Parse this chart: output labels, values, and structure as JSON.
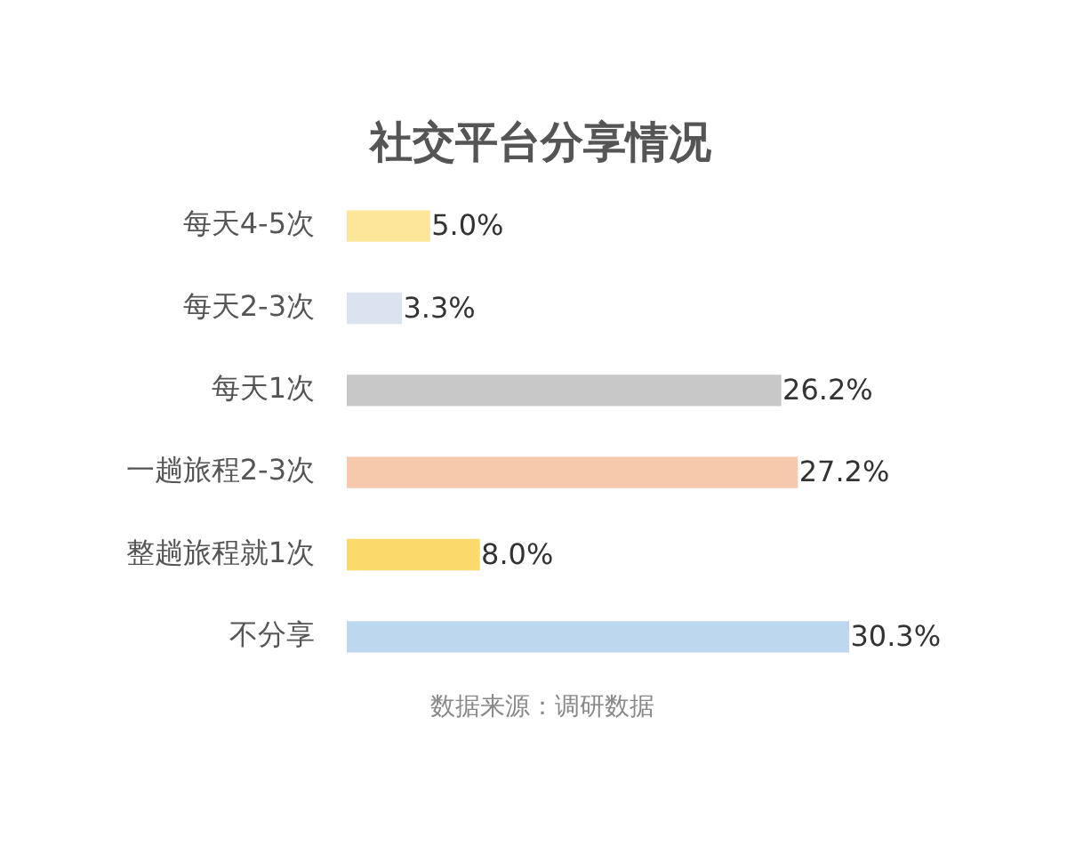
{
  "chart_data": {
    "type": "bar",
    "orientation": "horizontal",
    "title": "社交平台分享情况",
    "categories": [
      "每天4-5次",
      "每天2-3次",
      "每天1次",
      "一趟旅程2-3次",
      "整趟旅程就1次",
      "不分享"
    ],
    "values": [
      5.0,
      3.3,
      26.2,
      27.2,
      8.0,
      30.3
    ],
    "colors": [
      "#fce69a",
      "#dbe3f0",
      "#c8c8c8",
      "#f7c9ac",
      "#fbd96a",
      "#bdd7ee"
    ],
    "value_labels": [
      "5.0%",
      "3.3%",
      "26.2%",
      "27.2%",
      "8.0%",
      "30.3%"
    ],
    "tick_labels": "y",
    "annotations": [
      "数据来源：调研数据"
    ]
  }
}
